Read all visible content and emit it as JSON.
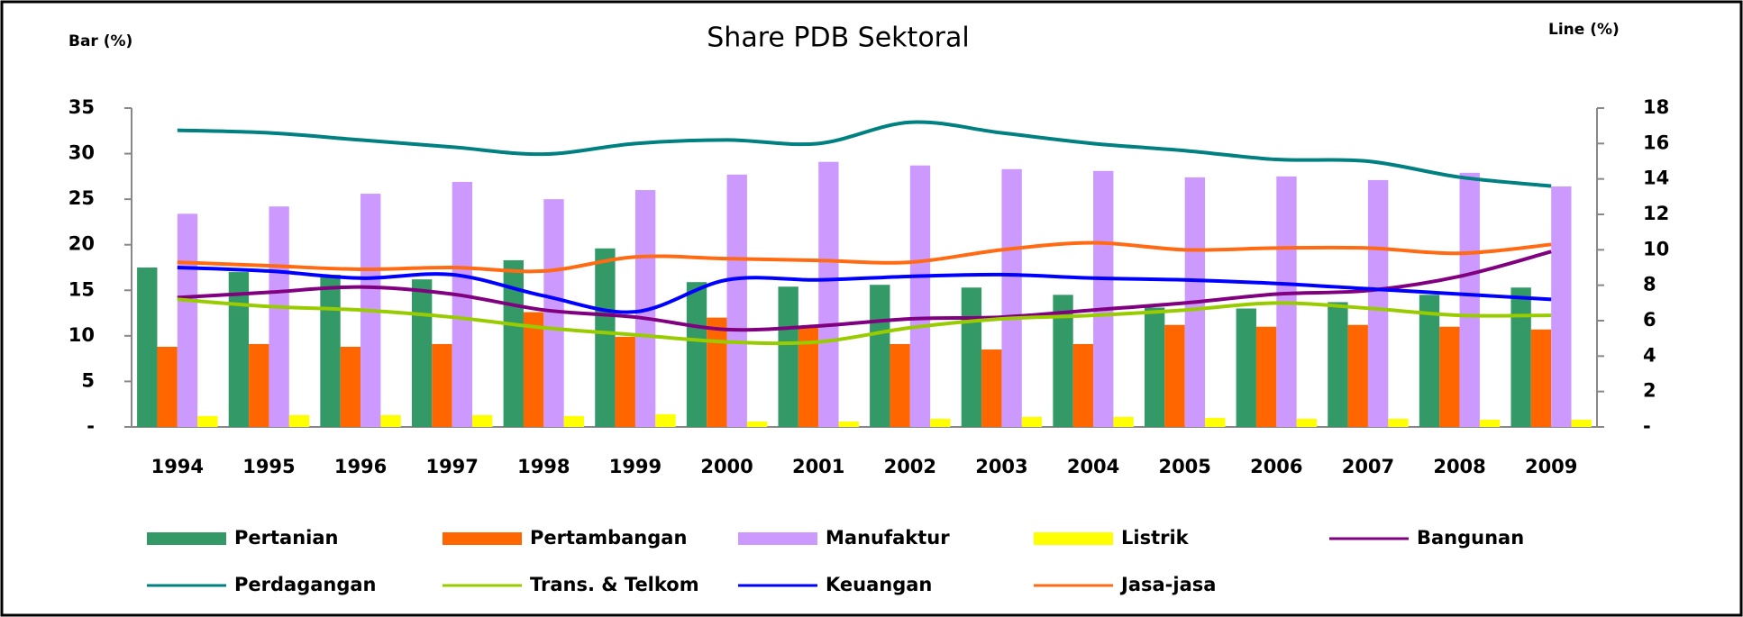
{
  "chart_data": {
    "type": "bar",
    "title": "Share PDB Sektoral",
    "y_label": "Bar (%)",
    "y2_label": "Line (%)",
    "categories": [
      "1994",
      "1995",
      "1996",
      "1997",
      "1998",
      "1999",
      "2000",
      "2001",
      "2002",
      "2003",
      "2004",
      "2005",
      "2006",
      "2007",
      "2008",
      "2009"
    ],
    "ylim": [
      0,
      35
    ],
    "yticks": [
      {
        "value": 0,
        "label": "-"
      },
      5,
      10,
      15,
      20,
      25,
      30,
      35
    ],
    "y2lim": [
      0,
      18
    ],
    "y2ticks": [
      {
        "value": 0,
        "label": "-"
      },
      2,
      4,
      6,
      8,
      10,
      12,
      14,
      16,
      18
    ],
    "series": [
      {
        "name": "Pertanian",
        "type": "bar",
        "color": "#339966",
        "values": [
          17.5,
          17.0,
          16.7,
          16.2,
          18.3,
          19.6,
          15.9,
          15.4,
          15.6,
          15.3,
          14.5,
          13.1,
          13.0,
          13.7,
          14.5,
          15.3
        ]
      },
      {
        "name": "Pertambangan",
        "type": "bar",
        "color": "#ff6600",
        "values": [
          8.8,
          9.1,
          8.8,
          9.1,
          12.6,
          9.9,
          12.0,
          11.0,
          9.1,
          8.5,
          9.1,
          11.2,
          11.0,
          11.2,
          11.0,
          10.7
        ]
      },
      {
        "name": "Manufaktur",
        "type": "bar",
        "color": "#cc99ff",
        "values": [
          23.4,
          24.2,
          25.6,
          26.9,
          25.0,
          26.0,
          27.7,
          29.1,
          28.7,
          28.3,
          28.1,
          27.4,
          27.5,
          27.1,
          27.9,
          26.4
        ]
      },
      {
        "name": "Listrik",
        "type": "bar",
        "color": "#ffff00",
        "values": [
          1.2,
          1.3,
          1.3,
          1.3,
          1.2,
          1.4,
          0.6,
          0.6,
          0.9,
          1.1,
          1.1,
          1.0,
          0.9,
          0.9,
          0.8,
          0.8
        ]
      },
      {
        "name": "Bangunan",
        "type": "line",
        "axis": "y2",
        "color": "#800080",
        "values": [
          7.3,
          7.6,
          7.9,
          7.5,
          6.6,
          6.2,
          5.5,
          5.7,
          6.1,
          6.2,
          6.6,
          7.0,
          7.5,
          7.7,
          8.5,
          9.9
        ]
      },
      {
        "name": "Perdagangan",
        "type": "line",
        "axis": "y2",
        "color": "#008080",
        "values": [
          16.75,
          16.6,
          16.2,
          15.8,
          15.4,
          16.0,
          16.2,
          16.0,
          17.2,
          16.6,
          16.0,
          15.6,
          15.1,
          15.0,
          14.1,
          13.6
        ]
      },
      {
        "name": "Trans. & Telkom",
        "type": "line",
        "axis": "y2",
        "color": "#99cc00",
        "values": [
          7.2,
          6.8,
          6.6,
          6.2,
          5.6,
          5.2,
          4.8,
          4.8,
          5.6,
          6.1,
          6.3,
          6.6,
          7.0,
          6.7,
          6.3,
          6.3
        ]
      },
      {
        "name": "Keuangan",
        "type": "line",
        "axis": "y2",
        "color": "#0000ff",
        "values": [
          9.0,
          8.8,
          8.4,
          8.6,
          7.4,
          6.5,
          8.3,
          8.3,
          8.5,
          8.6,
          8.4,
          8.3,
          8.1,
          7.8,
          7.5,
          7.2
        ]
      },
      {
        "name": "Jasa-jasa",
        "type": "line",
        "axis": "y2",
        "color": "#ff6a13",
        "values": [
          9.3,
          9.1,
          8.9,
          9.0,
          8.8,
          9.6,
          9.5,
          9.4,
          9.3,
          10.0,
          10.4,
          10.0,
          10.1,
          10.1,
          9.8,
          10.3
        ]
      }
    ]
  }
}
